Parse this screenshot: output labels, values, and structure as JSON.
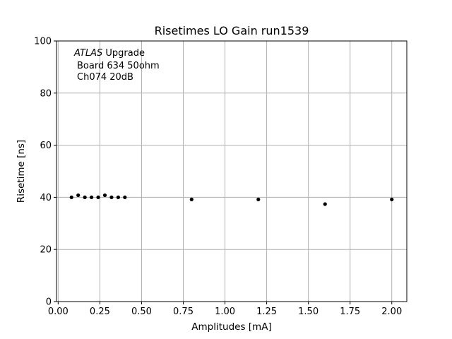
{
  "chart_data": {
    "type": "scatter",
    "title": "Risetimes LO Gain run1539",
    "xlabel": "Amplitudes [mA]",
    "ylabel": "Risetime [ns]",
    "xlim": [
      -0.01,
      2.09
    ],
    "ylim": [
      0,
      100
    ],
    "grid": true,
    "x_tick_labels": [
      "0.00",
      "0.25",
      "0.50",
      "0.75",
      "1.00",
      "1.25",
      "1.50",
      "1.75",
      "2.00"
    ],
    "y_tick_labels": [
      "0",
      "20",
      "40",
      "60",
      "80",
      "100"
    ],
    "x_ticks": [
      0.0,
      0.25,
      0.5,
      0.75,
      1.0,
      1.25,
      1.5,
      1.75,
      2.0
    ],
    "y_ticks": [
      0,
      20,
      40,
      60,
      80,
      100
    ],
    "annotation": {
      "line1_italic": "ATLAS",
      "line1_rest": " Upgrade",
      "line2": "Board 634 50ohm",
      "line3": "Ch074 20dB"
    },
    "series": [
      {
        "marker_color": "#000000",
        "x": [
          0.08,
          0.12,
          0.16,
          0.2,
          0.24,
          0.28,
          0.32,
          0.36,
          0.4,
          0.8,
          1.2,
          1.6,
          2.0
        ],
        "y": [
          40.0,
          40.8,
          40.0,
          40.0,
          40.0,
          40.8,
          40.0,
          40.0,
          40.0,
          39.2,
          39.2,
          37.4,
          39.2
        ]
      }
    ]
  }
}
